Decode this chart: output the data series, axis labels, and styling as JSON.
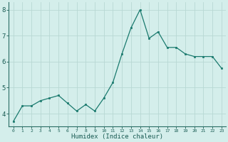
{
  "x": [
    0,
    1,
    2,
    3,
    4,
    5,
    6,
    7,
    8,
    9,
    10,
    11,
    12,
    13,
    14,
    15,
    16,
    17,
    18,
    19,
    20,
    21,
    22,
    23
  ],
  "y": [
    3.7,
    4.3,
    4.3,
    4.5,
    4.6,
    4.7,
    4.4,
    4.1,
    4.35,
    4.1,
    4.6,
    5.2,
    6.3,
    7.3,
    8.0,
    6.9,
    7.15,
    6.55,
    6.55,
    6.3,
    6.2,
    6.2,
    6.2,
    5.75
  ],
  "xlabel": "Humidex (Indice chaleur)",
  "ylim": [
    3.5,
    8.3
  ],
  "xlim": [
    -0.5,
    23.5
  ],
  "bg_color": "#d4eeeb",
  "line_color": "#1a7a6e",
  "grid_color": "#b8d8d4",
  "ylabel_ticks": [
    4,
    5,
    6,
    7,
    8
  ],
  "xticks": [
    0,
    1,
    2,
    3,
    4,
    5,
    6,
    7,
    8,
    9,
    10,
    11,
    12,
    13,
    14,
    15,
    16,
    17,
    18,
    19,
    20,
    21,
    22,
    23
  ]
}
